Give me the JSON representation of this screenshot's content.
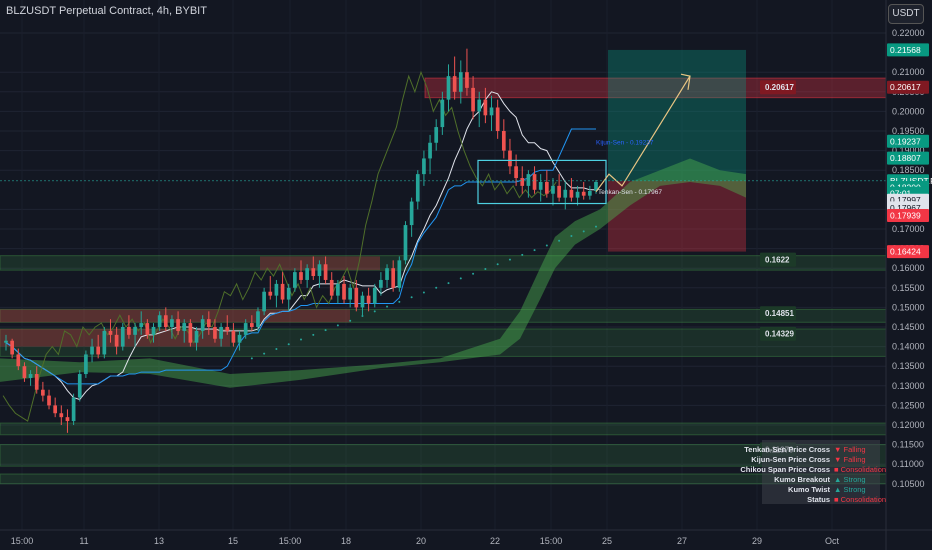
{
  "header": {
    "title": "BLZUSDT Perpetual Contract, 4h, BYBIT",
    "currency": "USDT"
  },
  "chart_data": {
    "type": "candlestick",
    "symbol": "BLZUSDT",
    "timeframe": "4h",
    "ylim": [
      0.105,
      0.2225
    ],
    "y_ticks": [
      "0.22000",
      "0.21000",
      "0.20500",
      "0.20000",
      "0.19500",
      "0.19000",
      "0.18500",
      "0.17500",
      "0.17000",
      "0.16500",
      "0.16000",
      "0.15500",
      "0.15000",
      "0.14500",
      "0.14000",
      "0.13500",
      "0.13000",
      "0.12500",
      "0.12000",
      "0.11500",
      "0.11000",
      "0.10500"
    ],
    "x_ticks": [
      "15:00",
      "11",
      "13",
      "15",
      "15:00",
      "18",
      "20",
      "22",
      "15:00",
      "25",
      "27",
      "29",
      "Oct"
    ],
    "price_labels": [
      {
        "text": "0.21568",
        "price": 0.21568,
        "color": "#089981"
      },
      {
        "text": "0.20617",
        "price": 0.20617,
        "color": "#801922"
      },
      {
        "text": "0.19237",
        "price": 0.19237,
        "color": "#089981"
      },
      {
        "text": "0.18807",
        "price": 0.18807,
        "color": "#089981"
      },
      {
        "text": "BLZUSDT.P",
        "price": 0.1823,
        "color": "#089981"
      },
      {
        "text": "0.18200",
        "price": 0.1806,
        "color": "#089981"
      },
      {
        "text": "07:01",
        "price": 0.1791,
        "color": "#089981"
      },
      {
        "text": "0.17997",
        "price": 0.17735,
        "color": "#e0e3eb"
      },
      {
        "text": "0.17967",
        "price": 0.1754,
        "color": "#e0e3eb"
      },
      {
        "text": "0.17939",
        "price": 0.17345,
        "color": "#f23645"
      },
      {
        "text": "0.16424",
        "price": 0.16424,
        "color": "#f23645"
      }
    ],
    "zone_labels": [
      {
        "text": "0.20617",
        "price": 0.20617,
        "color": "#801922"
      },
      {
        "text": "0.1622",
        "price": 0.1622,
        "color": "#1c3a28"
      },
      {
        "text": "0.14851",
        "price": 0.14851,
        "color": "#1c3a28"
      },
      {
        "text": "0.14329",
        "price": 0.14329,
        "color": "#1c3a28"
      },
      {
        "text": "0.11379",
        "price": 0.11379,
        "color": "#1c3a28"
      }
    ],
    "annotations": [
      {
        "text": "Kijun-Sen - 0.19237",
        "price": 0.1923,
        "color": "#2962ff"
      },
      {
        "text": "Tenkan-Sen - 0.17967",
        "price": 0.1797,
        "color": "#e0e3eb"
      }
    ],
    "zones": [
      {
        "kind": "supply",
        "top": 0.2085,
        "bottom": 0.2035
      },
      {
        "kind": "demand",
        "top": 0.1632,
        "bottom": 0.1595
      },
      {
        "kind": "demand",
        "top": 0.1495,
        "bottom": 0.1462
      },
      {
        "kind": "demand",
        "top": 0.1445,
        "bottom": 0.1375
      },
      {
        "kind": "demand",
        "top": 0.1205,
        "bottom": 0.1175
      },
      {
        "kind": "demand",
        "top": 0.115,
        "bottom": 0.1095
      },
      {
        "kind": "demand",
        "top": 0.1075,
        "bottom": 0.105
      }
    ],
    "position": {
      "entry": 0.1823,
      "target": 0.21568,
      "stop": 0.16424
    },
    "candles": [
      [
        0.141,
        0.143,
        0.139,
        0.1415
      ],
      [
        0.1415,
        0.142,
        0.137,
        0.138
      ],
      [
        0.138,
        0.1395,
        0.134,
        0.135
      ],
      [
        0.135,
        0.136,
        0.131,
        0.132
      ],
      [
        0.132,
        0.134,
        0.13,
        0.133
      ],
      [
        0.133,
        0.135,
        0.128,
        0.129
      ],
      [
        0.129,
        0.131,
        0.126,
        0.1275
      ],
      [
        0.1275,
        0.129,
        0.124,
        0.125
      ],
      [
        0.125,
        0.127,
        0.122,
        0.123
      ],
      [
        0.123,
        0.125,
        0.12,
        0.122
      ],
      [
        0.122,
        0.124,
        0.118,
        0.121
      ],
      [
        0.121,
        0.128,
        0.12,
        0.127
      ],
      [
        0.127,
        0.134,
        0.126,
        0.133
      ],
      [
        0.133,
        0.139,
        0.132,
        0.138
      ],
      [
        0.138,
        0.142,
        0.136,
        0.14
      ],
      [
        0.14,
        0.143,
        0.137,
        0.138
      ],
      [
        0.138,
        0.145,
        0.137,
        0.144
      ],
      [
        0.144,
        0.147,
        0.141,
        0.143
      ],
      [
        0.143,
        0.145,
        0.138,
        0.14
      ],
      [
        0.14,
        0.146,
        0.139,
        0.145
      ],
      [
        0.145,
        0.148,
        0.142,
        0.143
      ],
      [
        0.143,
        0.146,
        0.14,
        0.145
      ],
      [
        0.145,
        0.149,
        0.143,
        0.146
      ],
      [
        0.146,
        0.147,
        0.142,
        0.143
      ],
      [
        0.143,
        0.146,
        0.141,
        0.145
      ],
      [
        0.145,
        0.149,
        0.144,
        0.148
      ],
      [
        0.148,
        0.15,
        0.144,
        0.145
      ],
      [
        0.145,
        0.148,
        0.142,
        0.147
      ],
      [
        0.147,
        0.149,
        0.143,
        0.144
      ],
      [
        0.144,
        0.147,
        0.141,
        0.146
      ],
      [
        0.146,
        0.147,
        0.14,
        0.141
      ],
      [
        0.141,
        0.145,
        0.139,
        0.144
      ],
      [
        0.144,
        0.148,
        0.142,
        0.147
      ],
      [
        0.147,
        0.149,
        0.143,
        0.145
      ],
      [
        0.145,
        0.147,
        0.141,
        0.142
      ],
      [
        0.142,
        0.146,
        0.14,
        0.145
      ],
      [
        0.145,
        0.148,
        0.143,
        0.144
      ],
      [
        0.144,
        0.146,
        0.14,
        0.141
      ],
      [
        0.141,
        0.144,
        0.139,
        0.143
      ],
      [
        0.143,
        0.147,
        0.142,
        0.146
      ],
      [
        0.146,
        0.148,
        0.144,
        0.145
      ],
      [
        0.145,
        0.15,
        0.144,
        0.149
      ],
      [
        0.149,
        0.155,
        0.148,
        0.154
      ],
      [
        0.154,
        0.158,
        0.152,
        0.153
      ],
      [
        0.153,
        0.157,
        0.15,
        0.156
      ],
      [
        0.156,
        0.159,
        0.151,
        0.152
      ],
      [
        0.152,
        0.156,
        0.149,
        0.155
      ],
      [
        0.155,
        0.16,
        0.154,
        0.159
      ],
      [
        0.159,
        0.162,
        0.156,
        0.157
      ],
      [
        0.157,
        0.161,
        0.155,
        0.16
      ],
      [
        0.16,
        0.163,
        0.157,
        0.158
      ],
      [
        0.158,
        0.162,
        0.155,
        0.161
      ],
      [
        0.161,
        0.163,
        0.156,
        0.157
      ],
      [
        0.157,
        0.159,
        0.152,
        0.153
      ],
      [
        0.153,
        0.157,
        0.151,
        0.156
      ],
      [
        0.156,
        0.158,
        0.151,
        0.152
      ],
      [
        0.152,
        0.156,
        0.15,
        0.155
      ],
      [
        0.155,
        0.157,
        0.149,
        0.15
      ],
      [
        0.15,
        0.154,
        0.148,
        0.153
      ],
      [
        0.153,
        0.155,
        0.149,
        0.151
      ],
      [
        0.151,
        0.156,
        0.15,
        0.155
      ],
      [
        0.155,
        0.159,
        0.153,
        0.157
      ],
      [
        0.157,
        0.161,
        0.155,
        0.16
      ],
      [
        0.16,
        0.162,
        0.154,
        0.155
      ],
      [
        0.155,
        0.163,
        0.154,
        0.162
      ],
      [
        0.162,
        0.172,
        0.161,
        0.171
      ],
      [
        0.171,
        0.178,
        0.168,
        0.177
      ],
      [
        0.177,
        0.185,
        0.175,
        0.184
      ],
      [
        0.184,
        0.19,
        0.181,
        0.188
      ],
      [
        0.188,
        0.194,
        0.184,
        0.192
      ],
      [
        0.192,
        0.198,
        0.19,
        0.196
      ],
      [
        0.196,
        0.205,
        0.194,
        0.203
      ],
      [
        0.203,
        0.212,
        0.2,
        0.209
      ],
      [
        0.209,
        0.214,
        0.203,
        0.205
      ],
      [
        0.205,
        0.213,
        0.202,
        0.21
      ],
      [
        0.21,
        0.216,
        0.204,
        0.206
      ],
      [
        0.206,
        0.209,
        0.198,
        0.2
      ],
      [
        0.2,
        0.205,
        0.196,
        0.203
      ],
      [
        0.203,
        0.206,
        0.197,
        0.199
      ],
      [
        0.199,
        0.204,
        0.195,
        0.201
      ],
      [
        0.201,
        0.203,
        0.193,
        0.195
      ],
      [
        0.195,
        0.198,
        0.188,
        0.19
      ],
      [
        0.19,
        0.193,
        0.184,
        0.186
      ],
      [
        0.186,
        0.189,
        0.181,
        0.183
      ],
      [
        0.183,
        0.186,
        0.179,
        0.181
      ],
      [
        0.181,
        0.185,
        0.178,
        0.184
      ],
      [
        0.184,
        0.186,
        0.179,
        0.18
      ],
      [
        0.18,
        0.184,
        0.177,
        0.182
      ],
      [
        0.182,
        0.185,
        0.178,
        0.179
      ],
      [
        0.179,
        0.183,
        0.176,
        0.181
      ],
      [
        0.181,
        0.184,
        0.177,
        0.178
      ],
      [
        0.178,
        0.182,
        0.175,
        0.18
      ],
      [
        0.18,
        0.183,
        0.177,
        0.178
      ],
      [
        0.178,
        0.181,
        0.176,
        0.1795
      ],
      [
        0.1795,
        0.182,
        0.1775,
        0.1785
      ],
      [
        0.1785,
        0.181,
        0.1775,
        0.1797
      ],
      [
        0.1797,
        0.1825,
        0.179,
        0.182
      ]
    ]
  },
  "signals": [
    {
      "label": "Tenkan-Sen Price Cross",
      "value": "▼ Falling",
      "tone": "r"
    },
    {
      "label": "Kijun-Sen Price Cross",
      "value": "▼ Falling",
      "tone": "r"
    },
    {
      "label": "Chikou Span Price Cross",
      "value": "■ Consolidation",
      "tone": "r"
    },
    {
      "label": "Kumo Breakout",
      "value": "▲ Strong",
      "tone": "g"
    },
    {
      "label": "Kumo Twist",
      "value": "▲ Strong",
      "tone": "g"
    },
    {
      "label": "Status",
      "value": "■ Consolidation",
      "tone": "r"
    }
  ]
}
